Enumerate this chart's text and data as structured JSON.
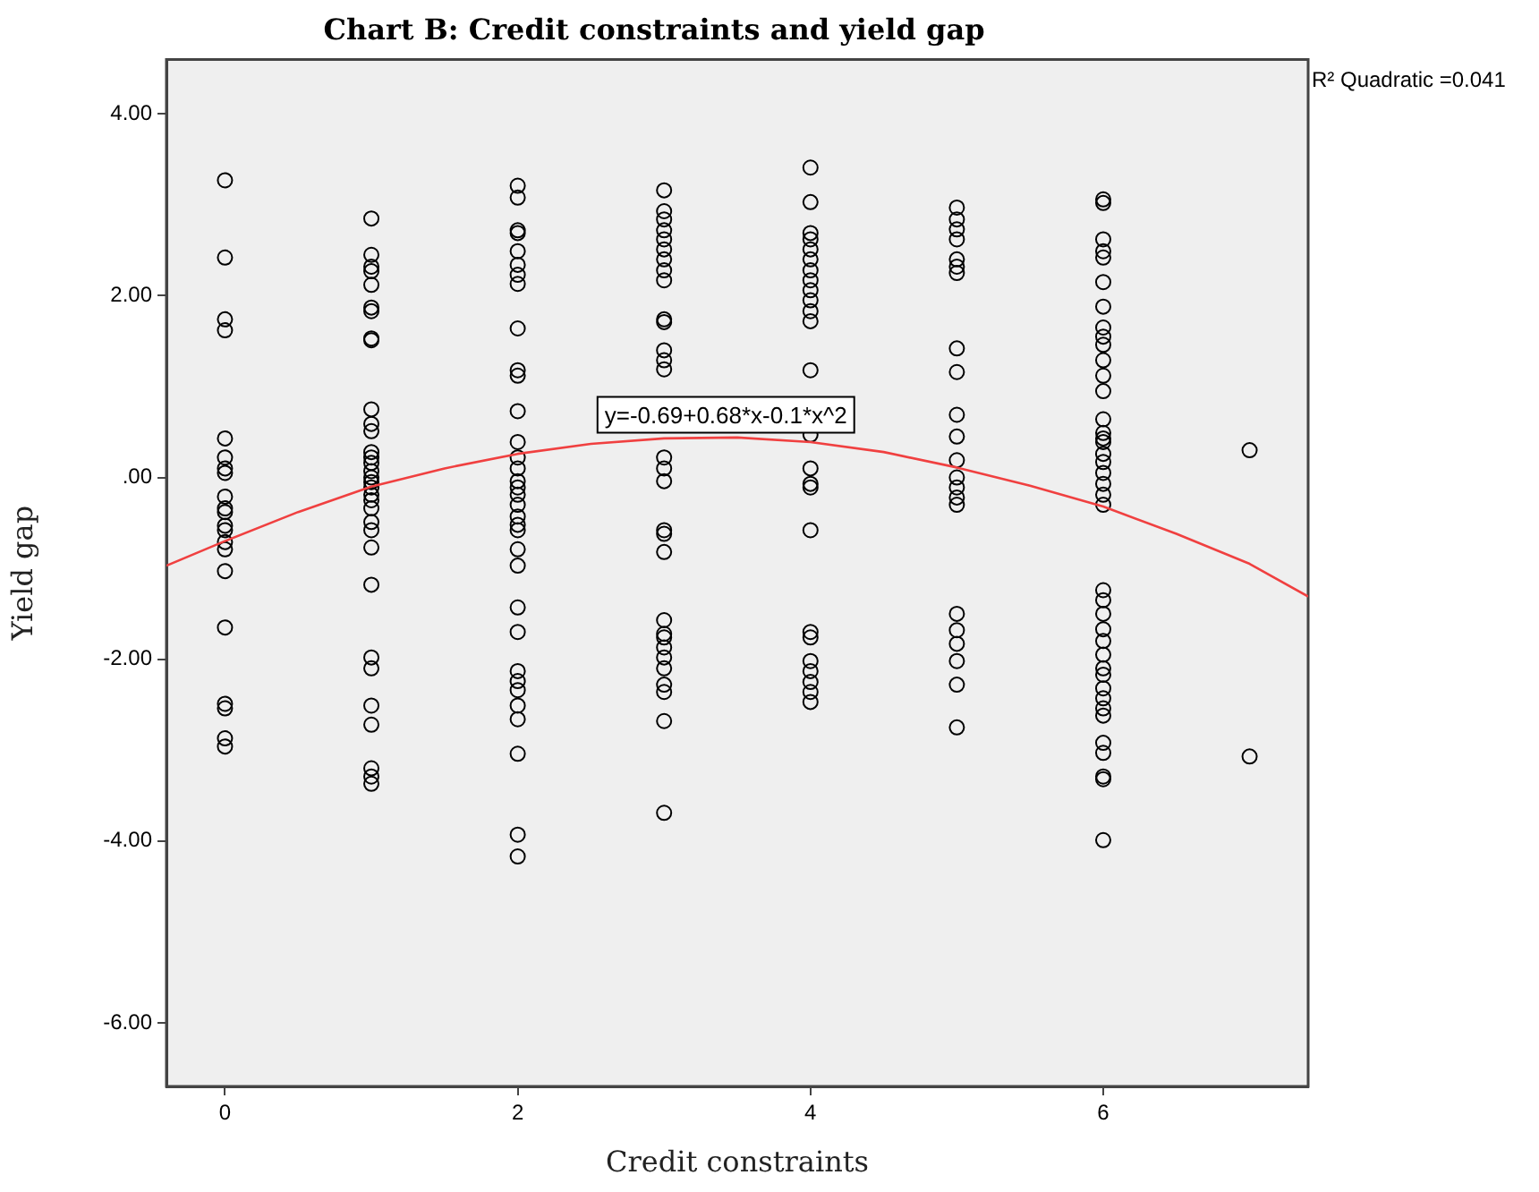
{
  "chart_data": {
    "type": "scatter",
    "title": "Chart B: Credit constraints and yield gap",
    "xlabel": "Credit constraints",
    "ylabel": "Yield gap",
    "xlim": [
      -0.4,
      7.4
    ],
    "xticks": [
      0,
      2,
      4,
      6
    ],
    "ylim": [
      -6.7,
      4.6
    ],
    "yticks": [
      {
        "value": 4,
        "label": "4.00"
      },
      {
        "value": 2,
        "label": "2.00"
      },
      {
        "value": 0,
        "label": ".00"
      },
      {
        "value": -2,
        "label": "-2.00"
      },
      {
        "value": -4,
        "label": "-4.00"
      },
      {
        "value": -6,
        "label": "-6.00"
      }
    ],
    "grid": false,
    "legend": false,
    "marker": "circle",
    "series": [
      {
        "color": "#000000",
        "x": [
          0,
          0,
          0,
          0,
          0,
          0,
          0,
          0,
          0,
          0,
          0,
          0,
          0,
          0,
          0,
          0,
          0,
          0,
          0,
          0,
          0,
          1,
          1,
          1,
          1,
          1,
          1,
          1,
          1,
          1,
          1,
          1,
          1,
          1,
          1,
          1,
          1,
          1,
          1,
          1,
          1,
          1,
          1,
          1,
          1,
          1,
          1,
          1,
          1,
          1,
          1,
          1,
          1,
          1,
          2,
          2,
          2,
          2,
          2,
          2,
          2,
          2,
          2,
          2,
          2,
          2,
          2,
          2,
          2,
          2,
          2,
          2,
          2,
          2,
          2,
          2,
          2,
          2,
          2,
          2,
          2,
          2,
          2,
          2,
          2,
          2,
          2,
          2,
          3,
          3,
          3,
          3,
          3,
          3,
          3,
          3,
          3,
          3,
          3,
          3,
          3,
          3,
          3,
          3,
          3,
          3,
          3,
          3,
          3,
          3,
          3,
          3,
          3,
          3,
          3,
          3,
          3,
          3,
          4,
          4,
          4,
          4,
          4,
          4,
          4,
          4,
          4,
          4,
          4,
          4,
          4,
          4,
          4,
          4,
          4,
          4,
          4,
          4,
          4,
          4,
          4,
          4,
          4,
          5,
          5,
          5,
          5,
          5,
          5,
          5,
          5,
          5,
          5,
          5,
          5,
          5,
          5,
          5,
          5,
          5,
          5,
          5,
          5,
          5,
          5,
          6,
          6,
          6,
          6,
          6,
          6,
          6,
          6,
          6,
          6,
          6,
          6,
          6,
          6,
          6,
          6,
          6,
          6,
          6,
          6,
          6,
          6,
          6,
          6,
          6,
          6,
          6,
          6,
          6,
          6,
          6,
          6,
          6,
          6,
          6,
          6,
          6,
          6,
          6,
          6,
          7,
          7
        ],
        "values": [
          3.27,
          2.42,
          1.74,
          1.62,
          0.43,
          0.22,
          0.1,
          0.05,
          -0.21,
          -0.34,
          -0.38,
          -0.53,
          -0.58,
          -0.71,
          -0.79,
          -1.03,
          -1.65,
          -2.49,
          -2.54,
          -2.87,
          -2.96,
          2.85,
          2.45,
          2.32,
          2.27,
          2.12,
          1.87,
          1.83,
          1.53,
          1.51,
          0.75,
          0.59,
          0.51,
          0.28,
          0.22,
          0.16,
          0.07,
          0,
          -0.05,
          -0.11,
          -0.19,
          -0.25,
          -0.34,
          -0.49,
          -0.58,
          -0.77,
          -1.18,
          -1.98,
          -2.1,
          -2.51,
          -2.72,
          -3.2,
          -3.29,
          -3.37,
          3.21,
          3.08,
          2.72,
          2.69,
          2.49,
          2.34,
          2.23,
          2.13,
          1.64,
          1.18,
          1.12,
          0.73,
          0.39,
          0.22,
          0.1,
          -0.04,
          -0.11,
          -0.19,
          -0.3,
          -0.43,
          -0.52,
          -0.58,
          -0.79,
          -0.97,
          -1.43,
          -1.7,
          -2.13,
          -2.24,
          -2.34,
          -2.51,
          -2.66,
          -3.04,
          -3.93,
          -4.17,
          3.16,
          2.93,
          2.84,
          2.72,
          2.62,
          2.51,
          2.4,
          2.28,
          2.17,
          1.74,
          1.71,
          1.4,
          1.29,
          1.19,
          0.22,
          0.1,
          -0.04,
          -0.58,
          -0.62,
          -0.82,
          -1.57,
          -1.72,
          -1.76,
          -1.87,
          -1.98,
          -2.1,
          -2.28,
          -2.36,
          -2.68,
          -3.69,
          3.41,
          3.03,
          2.69,
          2.62,
          2.51,
          2.4,
          2.28,
          2.17,
          2.06,
          1.95,
          1.83,
          1.72,
          1.18,
          0.47,
          0.1,
          -0.07,
          -0.11,
          -0.58,
          -1.7,
          -1.76,
          -2.02,
          -2.13,
          -2.25,
          -2.36,
          -2.47,
          2.97,
          2.84,
          2.73,
          2.62,
          2.4,
          2.32,
          2.25,
          1.42,
          1.16,
          0.69,
          0.45,
          0.19,
          0,
          -0.11,
          -0.22,
          -0.3,
          -1.5,
          -1.68,
          -1.83,
          -2.02,
          -2.28,
          -2.75,
          3.06,
          3.02,
          2.62,
          2.49,
          2.42,
          2.15,
          1.88,
          1.65,
          1.55,
          1.46,
          1.29,
          1.12,
          0.95,
          0.64,
          0.49,
          0.43,
          0.39,
          0.26,
          0.17,
          0.05,
          -0.07,
          -0.19,
          -0.3,
          -1.24,
          -1.35,
          -1.5,
          -1.67,
          -1.8,
          -1.95,
          -2.1,
          -2.17,
          -2.32,
          -2.43,
          -2.54,
          -2.62,
          -2.92,
          -3.03,
          -3.29,
          -3.32,
          -3.99,
          0.3,
          -3.07
        ]
      },
      {
        "type": "line",
        "color": "#f04040",
        "marker": "none",
        "x": [
          -0.4,
          0,
          0.5,
          1,
          1.5,
          2,
          2.5,
          3,
          3.5,
          4,
          4.5,
          5,
          5.5,
          6,
          6.5,
          7,
          7.4
        ],
        "values": [
          -0.97,
          -0.7,
          -0.38,
          -0.1,
          0.1,
          0.26,
          0.37,
          0.43,
          0.44,
          0.39,
          0.28,
          0.11,
          -0.09,
          -0.32,
          -0.62,
          -0.95,
          -1.31
        ]
      }
    ],
    "annotations": [
      "y=-0.69+0.68*x-0.1*x^2",
      "R² Quadratic =0.041"
    ]
  }
}
